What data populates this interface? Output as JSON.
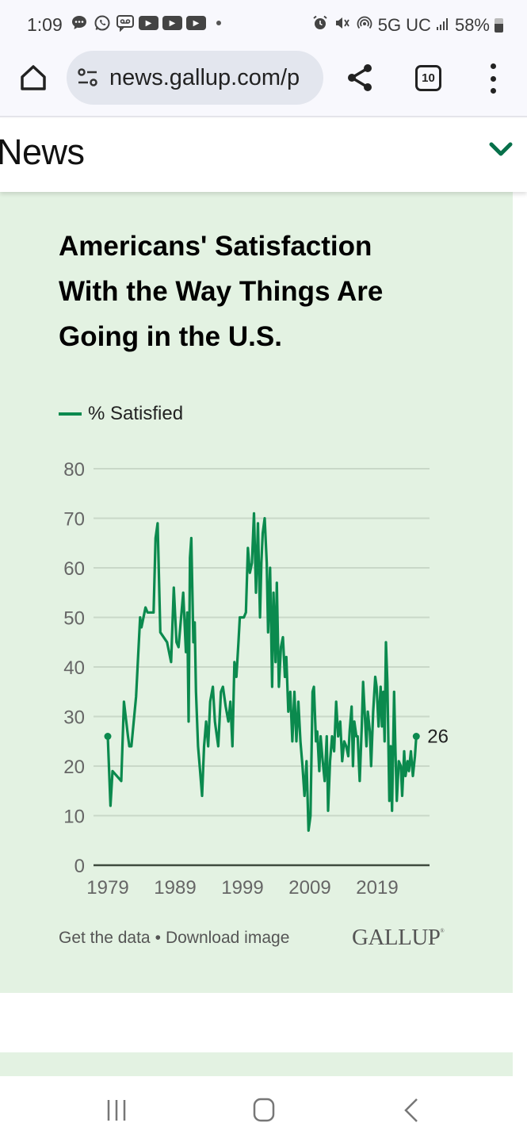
{
  "status_bar": {
    "time": "1:09",
    "notification_icons": [
      "messages-icon",
      "whatsapp-icon",
      "voicemail-icon",
      "youtube-icon",
      "youtube-icon",
      "youtube-icon",
      "more-dot-icon"
    ],
    "network": "5G UC",
    "battery": "58%"
  },
  "browser": {
    "url": "news.gallup.com/p",
    "tab_count": "10"
  },
  "site_nav": {
    "section": "News"
  },
  "chart_card": {
    "title": "Americans' Satisfaction With the Way Things Are Going in the U.S.",
    "legend_label": "% Satisfied",
    "end_label": "26",
    "footer_links": {
      "get_data": "Get the data",
      "separator": "•",
      "download": "Download image"
    },
    "logo": "GALLUP",
    "logo_mark": "®"
  },
  "colors": {
    "line": "#0b8a4e",
    "card_bg": "#e3f2e2",
    "chevron": "#07704a"
  },
  "chart_data": {
    "type": "line",
    "title": "Americans' Satisfaction With the Way Things Are Going in the U.S.",
    "xlabel": "",
    "ylabel": "",
    "ylim": [
      0,
      80
    ],
    "xlim": [
      1979,
      2025.6
    ],
    "yticks": [
      0,
      10,
      20,
      30,
      40,
      50,
      60,
      70,
      80
    ],
    "xticks": [
      1979,
      1989,
      1999,
      2009,
      2019
    ],
    "grid": true,
    "legend": "top-left",
    "series": [
      {
        "name": "% Satisfied",
        "end_label": "26",
        "x": [
          1979.0,
          1979.4,
          1979.7,
          1981.0,
          1981.4,
          1982.0,
          1982.2,
          1982.5,
          1983.2,
          1983.8,
          1984.0,
          1984.6,
          1984.9,
          1985.8,
          1986.1,
          1986.4,
          1986.8,
          1987.8,
          1988.4,
          1988.8,
          1989.2,
          1989.5,
          1990.2,
          1990.6,
          1990.8,
          1991.0,
          1991.2,
          1991.4,
          1991.7,
          1991.9,
          1992.1,
          1992.4,
          1992.7,
          1993.0,
          1993.3,
          1993.6,
          1993.9,
          1994.2,
          1994.6,
          1994.9,
          1995.0,
          1995.4,
          1995.8,
          1996.1,
          1996.5,
          1996.9,
          1997.2,
          1997.5,
          1997.8,
          1998.1,
          1998.4,
          1998.6,
          1998.9,
          1999.2,
          1999.5,
          1999.8,
          2000.1,
          2000.4,
          2000.7,
          2001.0,
          2001.3,
          2001.6,
          2001.8,
          2002.0,
          2002.3,
          2002.6,
          2002.8,
          2003.1,
          2003.4,
          2003.6,
          2003.9,
          2004.1,
          2004.4,
          2004.7,
          2005.0,
          2005.3,
          2005.5,
          2005.8,
          2006.1,
          2006.4,
          2006.7,
          2007.0,
          2007.3,
          2007.6,
          2007.9,
          2008.2,
          2008.5,
          2008.8,
          2009.1,
          2009.4,
          2009.6,
          2009.9,
          2010.1,
          2010.4,
          2010.6,
          2010.9,
          2011.2,
          2011.5,
          2011.7,
          2012.0,
          2012.3,
          2012.6,
          2012.9,
          2013.2,
          2013.5,
          2013.8,
          2014.1,
          2014.4,
          2014.7,
          2014.9,
          2015.2,
          2015.4,
          2015.6,
          2015.9,
          2016.1,
          2016.4,
          2016.7,
          2016.9,
          2017.1,
          2017.4,
          2017.6,
          2017.9,
          2018.1,
          2018.4,
          2018.7,
          2018.9,
          2019.2,
          2019.5,
          2019.7,
          2019.9,
          2020.1,
          2020.3,
          2020.5,
          2020.8,
          2021.0,
          2021.2,
          2021.5,
          2021.7,
          2021.9,
          2022.2,
          2022.5,
          2022.7,
          2023.0,
          2023.2,
          2023.5,
          2023.7,
          2024.0,
          2024.3,
          2024.6,
          2024.8
        ],
        "values": [
          26,
          12,
          19,
          17,
          33,
          26,
          24,
          24,
          34,
          50,
          48,
          52,
          51,
          51,
          66,
          69,
          47,
          45,
          41,
          56,
          45,
          44,
          55,
          43,
          51,
          29,
          62,
          66,
          45,
          49,
          35,
          24,
          19,
          14,
          24,
          29,
          24,
          33,
          36,
          29,
          28,
          24,
          35,
          36,
          32,
          29,
          33,
          24,
          41,
          38,
          45,
          50,
          50,
          50,
          51,
          64,
          59,
          61,
          71,
          55,
          69,
          50,
          61,
          67,
          70,
          61,
          47,
          60,
          36,
          55,
          41,
          57,
          36,
          44,
          46,
          38,
          42,
          31,
          35,
          25,
          35,
          25,
          33,
          25,
          20,
          14,
          21,
          7,
          10,
          35,
          36,
          25,
          27,
          19,
          26,
          21,
          17,
          26,
          11,
          21,
          26,
          23,
          33,
          26,
          29,
          21,
          25,
          24,
          22,
          27,
          32,
          20,
          29,
          26,
          26,
          17,
          28,
          37,
          32,
          24,
          31,
          27,
          20,
          31,
          38,
          36,
          28,
          36,
          28,
          35,
          25,
          45,
          37,
          13,
          24,
          11,
          35,
          23,
          13,
          21,
          20,
          14,
          23,
          18,
          21,
          19,
          23,
          18,
          22,
          26
        ]
      }
    ]
  }
}
